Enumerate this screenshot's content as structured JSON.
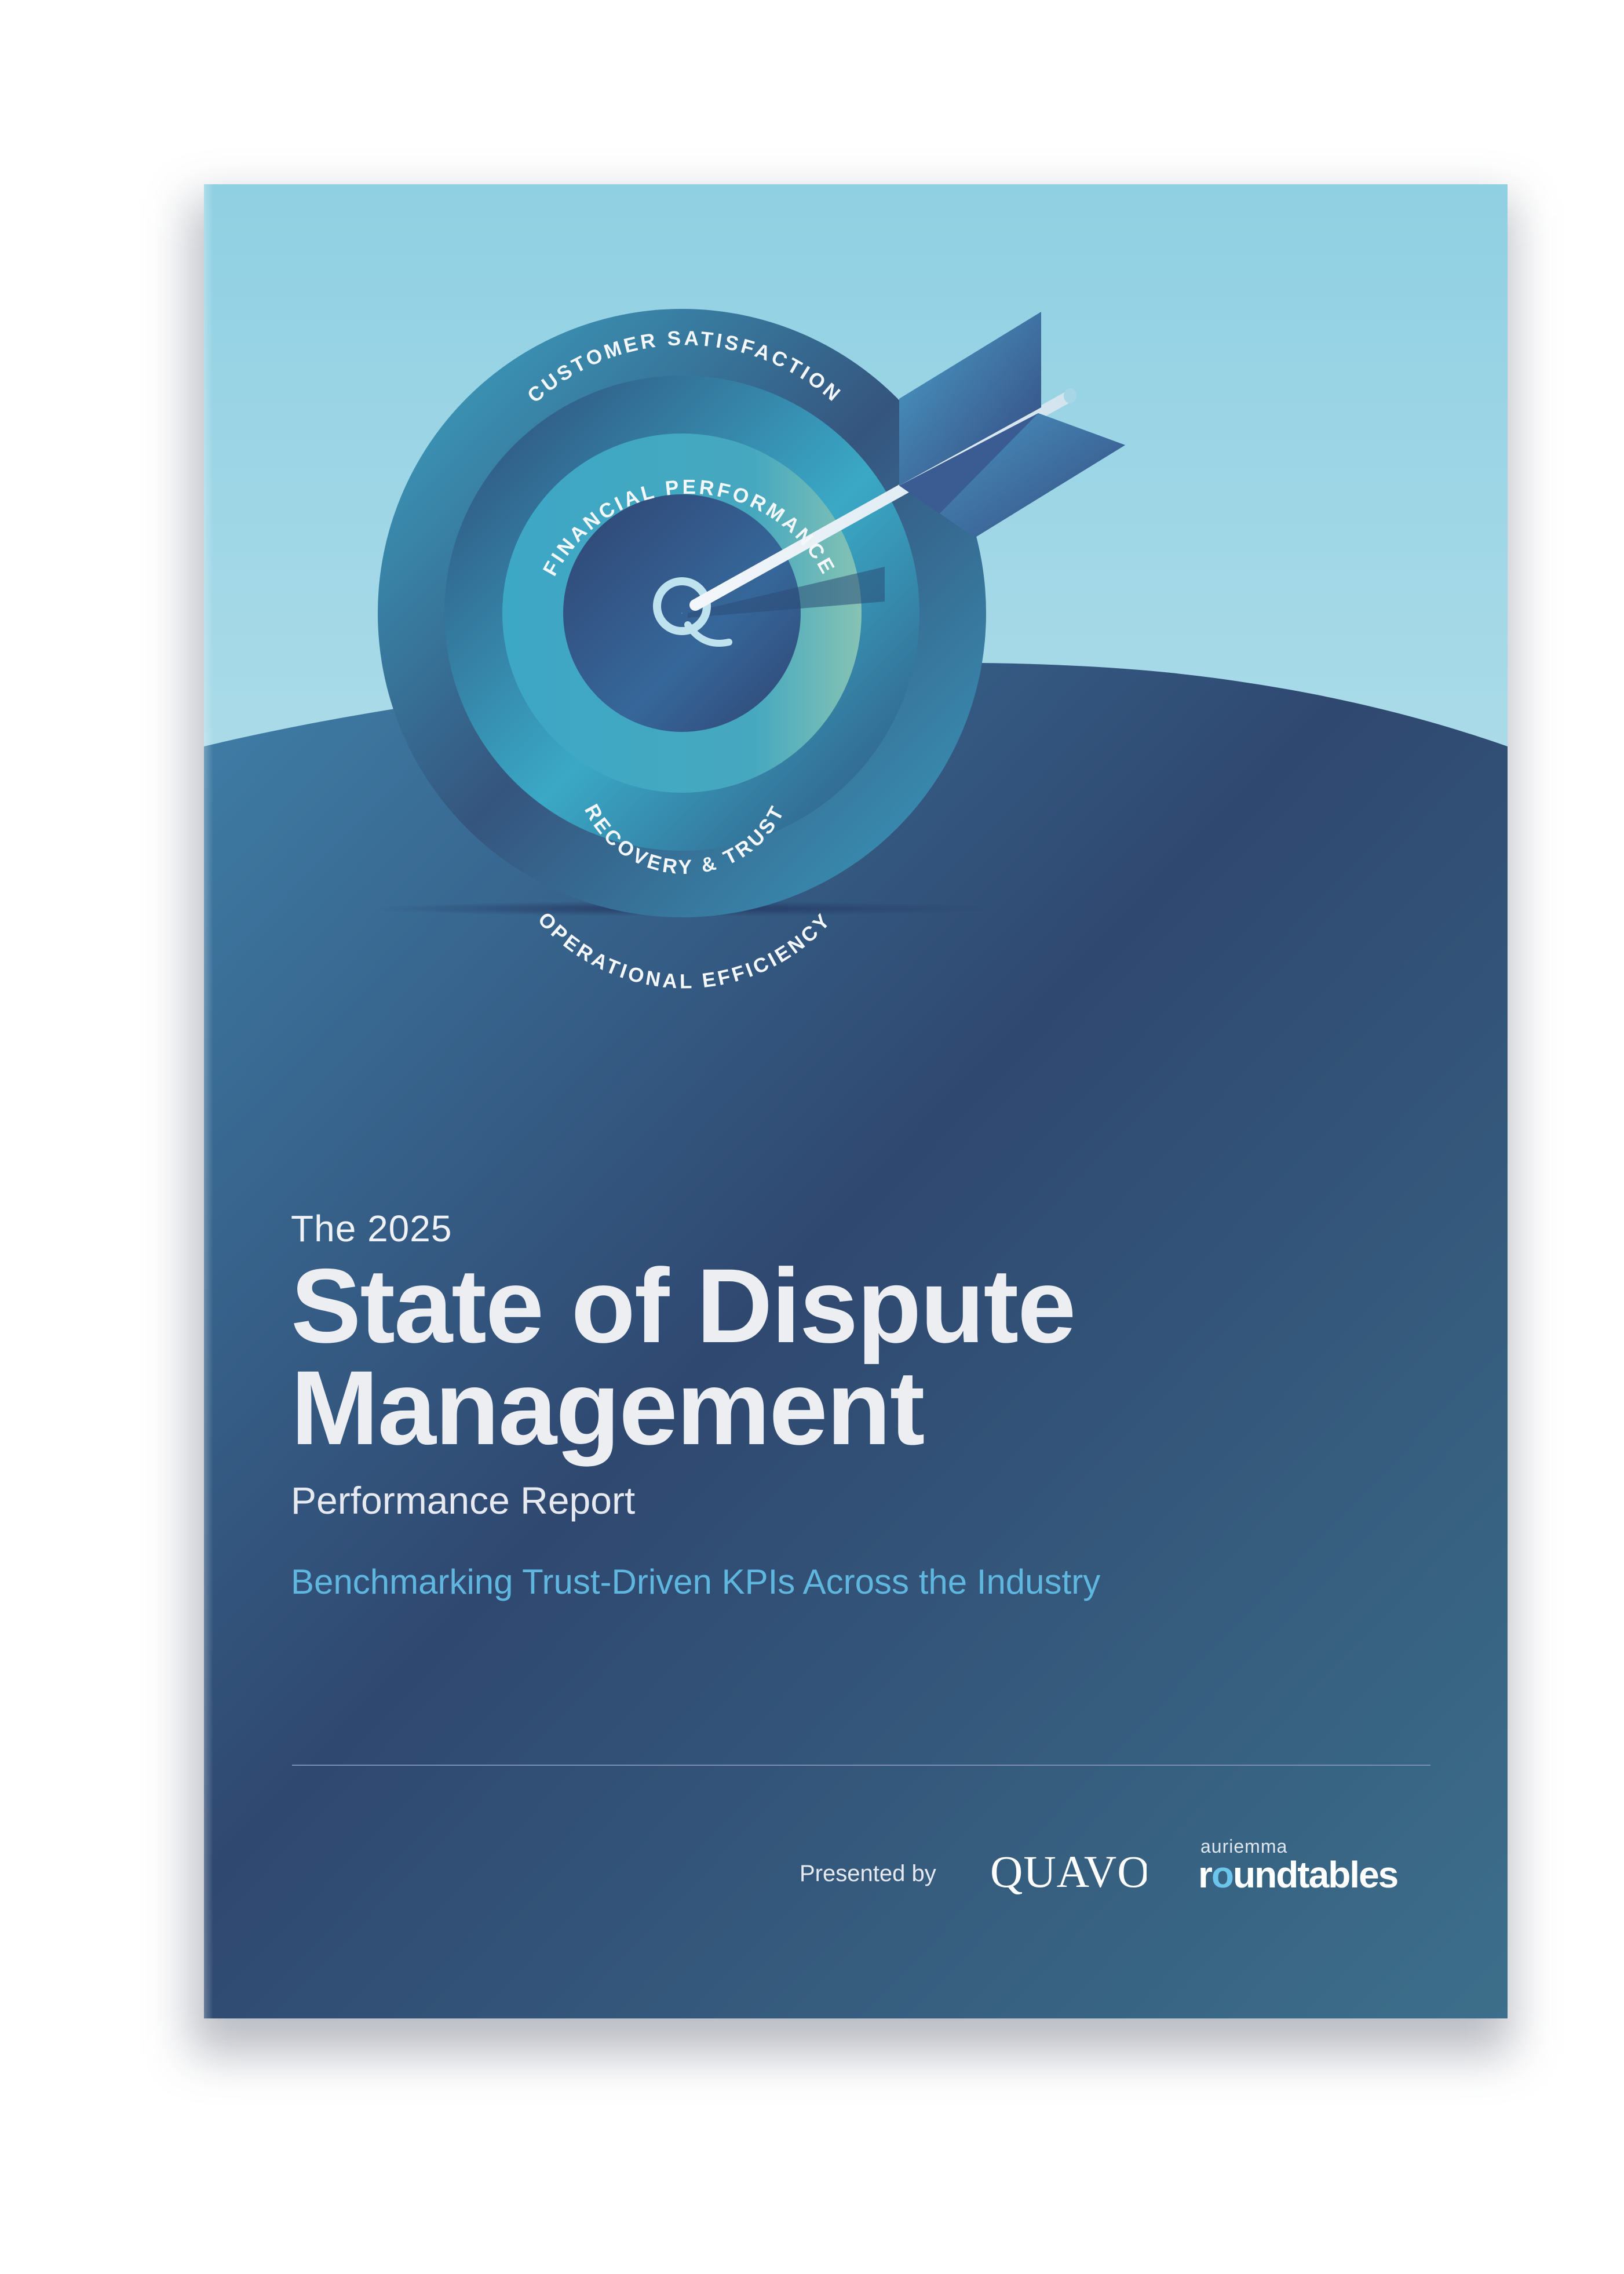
{
  "cover": {
    "target_labels": {
      "outer": "CUSTOMER SATISFACTION",
      "second": "FINANCIAL PERFORMANCE",
      "inner": "RECOVERY & TRUST",
      "bottom": "OPERATIONAL EFFICIENCY"
    },
    "center_logo_letter": "Q",
    "kicker": "The 2025",
    "title_line1": "State of Dispute",
    "title_line2": "Management",
    "subtitle": "Performance Report",
    "tagline": "Benchmarking Trust-Driven KPIs Across the Industry",
    "presented_by": "Presented by",
    "sponsors": {
      "quavo": "QUAVO",
      "auriemma_small": "auriemma",
      "roundtables_r": "r",
      "roundtables_o": "o",
      "roundtables_rest": "undtables"
    },
    "colors": {
      "sky_top": "#8fd0e2",
      "sky_bottom": "#e7f3f8",
      "ground": "#2f4870",
      "ring_teal": "#3aa6c4",
      "accent_blue": "#5fb6df"
    }
  }
}
